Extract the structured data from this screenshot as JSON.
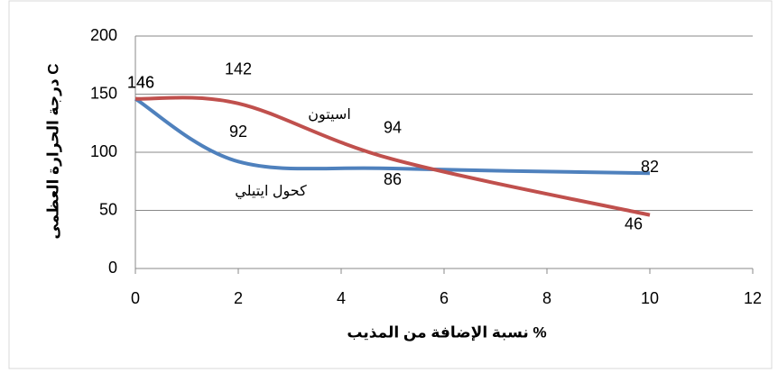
{
  "chart_data": {
    "type": "line",
    "xlabel": "نسبة الإضافة من المذيب %",
    "ylabel": "درجة الحرارة العظمى C",
    "x": [
      0,
      2,
      5,
      10
    ],
    "series": [
      {
        "name": "كحول ايتيلي",
        "color": "#4f81bd",
        "values": [
          146,
          92,
          86,
          82
        ]
      },
      {
        "name": "اسيتون",
        "color": "#c0504d",
        "values": [
          146,
          142,
          94,
          46
        ]
      }
    ],
    "xlim": [
      0,
      12
    ],
    "xticks": [
      0,
      2,
      4,
      6,
      8,
      10,
      12
    ],
    "ylim": [
      0,
      200
    ],
    "yticks": [
      0,
      50,
      100,
      150,
      200
    ],
    "grid": true
  }
}
